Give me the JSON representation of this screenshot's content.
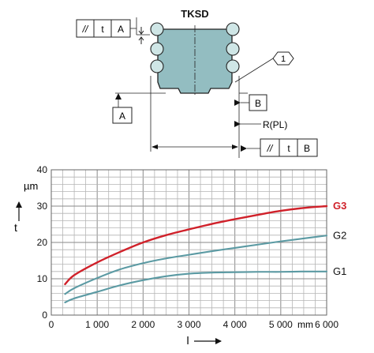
{
  "drawing": {
    "title": "TKSD",
    "callout_number": "1",
    "frame_top": {
      "symbol": "//",
      "tolerance": "t",
      "datum": "A"
    },
    "frame_bottom": {
      "symbol": "//",
      "tolerance": "t",
      "datum": "B"
    },
    "datum_a": "A",
    "datum_b": "B",
    "rail_ref": "R(PL)"
  },
  "chart_data": {
    "type": "line",
    "xlabel": "l",
    "ylabel": "t",
    "x_unit": "mm",
    "y_unit": "µm",
    "xlim": [
      0,
      6000
    ],
    "ylim": [
      0,
      40
    ],
    "x_ticks": [
      0,
      1000,
      2000,
      3000,
      4000,
      5000,
      6000
    ],
    "x_tick_labels": [
      "0",
      "1 000",
      "2 000",
      "3 000",
      "4 000",
      "5 000",
      "6 000"
    ],
    "y_ticks": [
      0,
      10,
      20,
      30,
      40
    ],
    "y_tick_labels": [
      "0",
      "10",
      "20",
      "30",
      "40"
    ],
    "grid": true,
    "series": [
      {
        "name": "G3",
        "color": "#d0212a",
        "x": [
          300,
          500,
          1000,
          1500,
          2000,
          2500,
          3000,
          3500,
          4000,
          4500,
          5000,
          5500,
          6000
        ],
        "y": [
          8.5,
          11,
          14.5,
          17.4,
          20,
          22,
          23.6,
          25.1,
          26.4,
          27.6,
          28.7,
          29.5,
          30
        ]
      },
      {
        "name": "G2",
        "color": "#5b9aa3",
        "x": [
          300,
          500,
          1000,
          1500,
          2000,
          2500,
          3000,
          3500,
          4000,
          4500,
          5000,
          5500,
          6000
        ],
        "y": [
          5.8,
          7.4,
          10.2,
          12.6,
          14.3,
          15.6,
          16.6,
          17.6,
          18.5,
          19.4,
          20.3,
          21.1,
          21.9
        ]
      },
      {
        "name": "G1",
        "color": "#5b9aa3",
        "x": [
          300,
          500,
          1000,
          1500,
          2000,
          2500,
          3000,
          3500,
          4000,
          4500,
          5000,
          5500,
          6000
        ],
        "y": [
          3.5,
          4.6,
          6.4,
          8.2,
          9.6,
          10.7,
          11.4,
          11.7,
          11.8,
          11.9,
          11.9,
          12,
          12
        ]
      }
    ]
  }
}
